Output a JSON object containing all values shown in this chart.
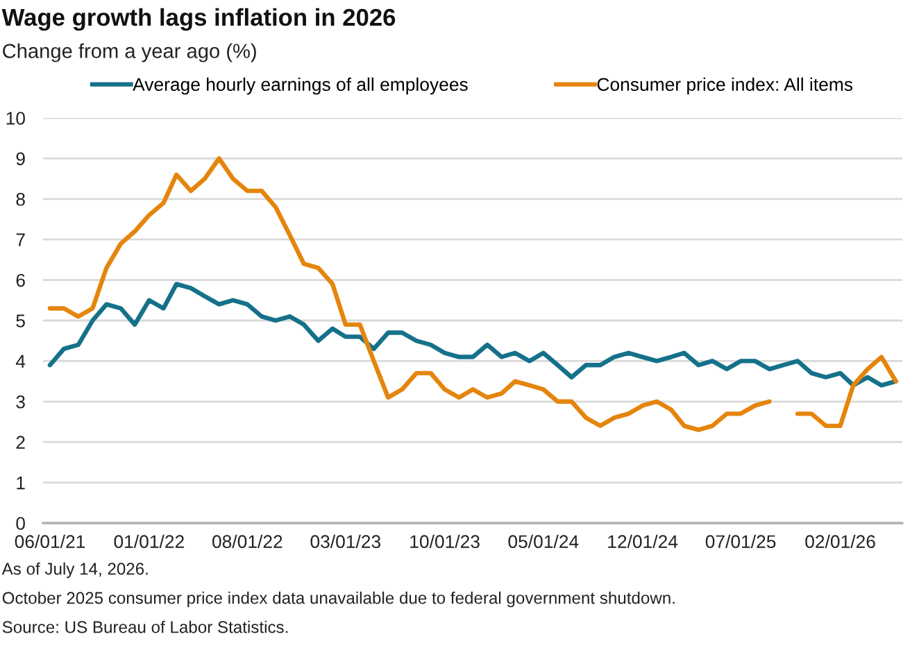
{
  "chart_data": {
    "type": "line",
    "title": "Wage growth lags inflation in 2026",
    "subtitle": "Change from a year ago (%)",
    "x": [
      "2021-06",
      "2021-07",
      "2021-08",
      "2021-09",
      "2021-10",
      "2021-11",
      "2021-12",
      "2022-01",
      "2022-02",
      "2022-03",
      "2022-04",
      "2022-05",
      "2022-06",
      "2022-07",
      "2022-08",
      "2022-09",
      "2022-10",
      "2022-11",
      "2022-12",
      "2023-01",
      "2023-02",
      "2023-03",
      "2023-04",
      "2023-05",
      "2023-06",
      "2023-07",
      "2023-08",
      "2023-09",
      "2023-10",
      "2023-11",
      "2023-12",
      "2024-01",
      "2024-02",
      "2024-03",
      "2024-04",
      "2024-05",
      "2024-06",
      "2024-07",
      "2024-08",
      "2024-09",
      "2024-10",
      "2024-11",
      "2024-12",
      "2025-01",
      "2025-02",
      "2025-03",
      "2025-04",
      "2025-05",
      "2025-06",
      "2025-07",
      "2025-08",
      "2025-09",
      "2025-10",
      "2025-11",
      "2025-12",
      "2026-01",
      "2026-02",
      "2026-03",
      "2026-04",
      "2026-05",
      "2026-06"
    ],
    "series": [
      {
        "name": "Average hourly earnings of all employees",
        "color": "#15718a",
        "values": [
          3.9,
          4.3,
          4.4,
          5.0,
          5.4,
          5.3,
          4.9,
          5.5,
          5.3,
          5.9,
          5.8,
          5.6,
          5.4,
          5.5,
          5.4,
          5.1,
          5.0,
          5.1,
          4.9,
          4.5,
          4.8,
          4.6,
          4.6,
          4.3,
          4.7,
          4.7,
          4.5,
          4.4,
          4.2,
          4.1,
          4.1,
          4.4,
          4.1,
          4.2,
          4.0,
          4.2,
          3.9,
          3.6,
          3.9,
          3.9,
          4.1,
          4.2,
          4.1,
          4.0,
          4.1,
          4.2,
          3.9,
          4.0,
          3.8,
          4.0,
          4.0,
          3.8,
          3.9,
          4.0,
          3.7,
          3.6,
          3.7,
          3.4,
          3.6,
          3.4,
          3.5
        ]
      },
      {
        "name": "Consumer price index: All items",
        "color": "#e5850d",
        "values": [
          5.3,
          5.3,
          5.1,
          5.3,
          6.3,
          6.9,
          7.2,
          7.6,
          7.9,
          8.6,
          8.2,
          8.5,
          9.0,
          8.5,
          8.2,
          8.2,
          7.8,
          7.1,
          6.4,
          6.3,
          5.9,
          4.9,
          4.9,
          4.0,
          3.1,
          3.3,
          3.7,
          3.7,
          3.3,
          3.1,
          3.3,
          3.1,
          3.2,
          3.5,
          3.4,
          3.3,
          3.0,
          3.0,
          2.6,
          2.4,
          2.6,
          2.7,
          2.9,
          3.0,
          2.8,
          2.4,
          2.3,
          2.4,
          2.7,
          2.7,
          2.9,
          3.0,
          null,
          2.7,
          2.7,
          2.4,
          2.4,
          3.4,
          3.8,
          4.1,
          3.5
        ]
      }
    ],
    "xlim": [
      "2021-05-17",
      "2026-06-15"
    ],
    "xticks": [
      {
        "value": "2021-06-01",
        "label": "06/01/21"
      },
      {
        "value": "2022-01-01",
        "label": "01/01/22"
      },
      {
        "value": "2022-08-01",
        "label": "08/01/22"
      },
      {
        "value": "2023-03-01",
        "label": "03/01/23"
      },
      {
        "value": "2023-10-01",
        "label": "10/01/23"
      },
      {
        "value": "2024-05-01",
        "label": "05/01/24"
      },
      {
        "value": "2024-12-01",
        "label": "12/01/24"
      },
      {
        "value": "2025-07-01",
        "label": "07/01/25"
      },
      {
        "value": "2026-02-01",
        "label": "02/01/26"
      }
    ],
    "ylim": [
      0,
      10
    ],
    "yticks": [
      0,
      1,
      2,
      3,
      4,
      5,
      6,
      7,
      8,
      9,
      10
    ],
    "grid": "y",
    "legend": "top",
    "annotations": [
      "As of July 14, 2026.",
      "October 2025 consumer price index data unavailable due to federal government shutdown.",
      "Source: US Bureau of Labor Statistics."
    ]
  }
}
